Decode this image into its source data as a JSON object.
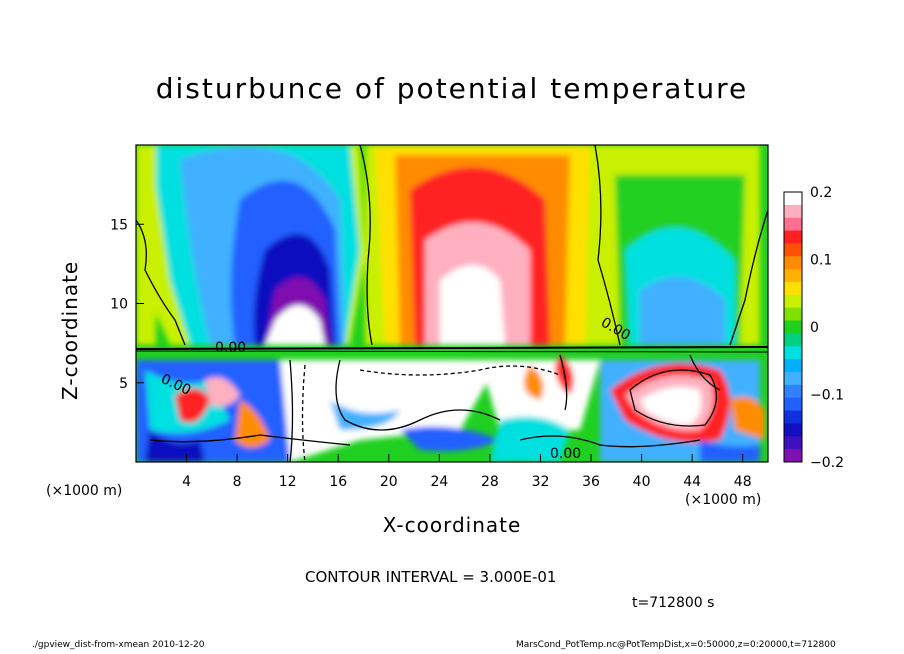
{
  "chart_data": {
    "type": "heatmap",
    "title": "disturbunce of potential temperature",
    "xlabel": "X-coordinate",
    "ylabel": "Z-coordinate",
    "x_unit_left": "(×1000 m)",
    "x_unit_right": "(×1000 m)",
    "x_ticks": [
      4,
      8,
      12,
      16,
      20,
      24,
      28,
      32,
      36,
      40,
      44,
      48
    ],
    "y_ticks": [
      5,
      10,
      15
    ],
    "xlim": [
      0,
      50
    ],
    "ylim": [
      0,
      20
    ],
    "colorbar": {
      "range": [
        -0.2,
        0.2
      ],
      "tick_labels": [
        "0.2",
        "0.1",
        "0",
        "−0.1",
        "−0.2"
      ],
      "tick_values": [
        0.2,
        0.1,
        0,
        -0.1,
        -0.2
      ]
    },
    "contour_labels": [
      "0.00",
      "0.00",
      "0.00",
      "0.00"
    ],
    "colors": {
      "white_max": "#ffffff",
      "pink": "#ffb0c0",
      "red": "#ff2020",
      "orange": "#ff8c00",
      "yellow": "#ffe000",
      "yellowgreen": "#c8f000",
      "green": "#20d020",
      "cyan": "#00e0e0",
      "lightblue": "#40b0ff",
      "blue": "#2060ff",
      "darkblue": "#1010c0",
      "purple": "#8010b0"
    },
    "annotation_contour_interval": "CONTOUR INTERVAL = 3.000E-01",
    "time": "t=712800 s"
  },
  "footer": {
    "left": "./gpview_dist-from-xmean  2010-12-20",
    "right": "MarsCond_PotTemp.nc@PotTempDist,x=0:50000,z=0:20000,t=712800"
  }
}
